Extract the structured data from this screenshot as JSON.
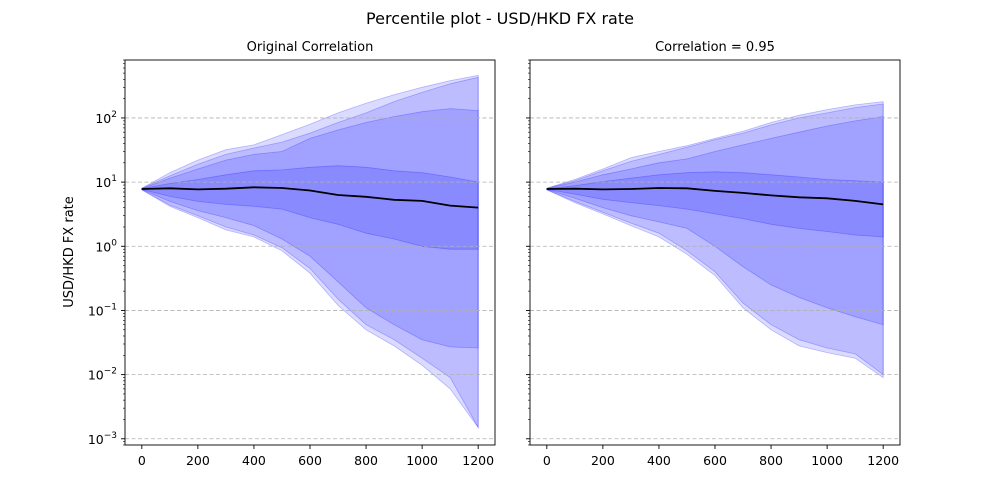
{
  "figure": {
    "title": "Percentile plot - USD/HKD FX rate"
  },
  "colors": {
    "band": "#0000ff",
    "median": "#000000",
    "grid": "#b0b0b0"
  },
  "chart_data": {
    "type": "area",
    "ylabel": "USD/HKD FX rate",
    "yscale": "log",
    "ylim": [
      0.0008,
      800
    ],
    "xlim": [
      -60,
      1260
    ],
    "x_ticks": [
      0,
      200,
      400,
      600,
      800,
      1000,
      1200
    ],
    "y_ticks": [
      {
        "base": "10",
        "exp": "−3",
        "value": 0.001
      },
      {
        "base": "10",
        "exp": "−2",
        "value": 0.01
      },
      {
        "base": "10",
        "exp": "−1",
        "value": 0.1
      },
      {
        "base": "10",
        "exp": "0",
        "value": 1
      },
      {
        "base": "10",
        "exp": "1",
        "value": 10
      },
      {
        "base": "10",
        "exp": "2",
        "value": 100
      }
    ],
    "grid": "y-dashed",
    "x": [
      0,
      100,
      200,
      300,
      400,
      500,
      600,
      700,
      800,
      900,
      1000,
      1100,
      1200
    ],
    "panels": [
      {
        "title": "Original Correlation",
        "median": [
          7.8,
          8.0,
          7.7,
          7.9,
          8.3,
          8.1,
          7.4,
          6.3,
          5.9,
          5.3,
          5.1,
          4.3,
          4.0
        ],
        "bands": [
          {
            "lower": [
              7.6,
              4.2,
              2.8,
              1.8,
              1.4,
              0.85,
              0.38,
              0.12,
              0.05,
              0.028,
              0.014,
              0.006,
              0.0015
            ],
            "upper": [
              8.0,
              14,
              22,
              32,
              38,
              55,
              80,
              120,
              170,
              230,
              300,
              380,
              460
            ]
          },
          {
            "lower": [
              7.6,
              4.4,
              3.0,
              2.0,
              1.5,
              0.95,
              0.45,
              0.15,
              0.06,
              0.035,
              0.018,
              0.009,
              0.0015
            ],
            "upper": [
              8.0,
              12.5,
              19,
              27,
              34,
              42,
              58,
              85,
              120,
              180,
              250,
              340,
              430
            ]
          },
          {
            "lower": [
              7.7,
              5.0,
              3.6,
              2.8,
              2.1,
              1.3,
              0.7,
              0.28,
              0.11,
              0.06,
              0.035,
              0.027,
              0.026
            ],
            "upper": [
              7.9,
              11.5,
              16,
              22,
              27,
              30,
              48,
              65,
              85,
              105,
              125,
              140,
              130
            ]
          },
          {
            "lower": [
              7.7,
              6.0,
              5.0,
              4.5,
              4.2,
              3.8,
              2.8,
              2.2,
              1.6,
              1.3,
              1.0,
              0.9,
              0.9
            ],
            "upper": [
              7.9,
              9.5,
              11,
              13,
              15,
              15.5,
              17,
              18,
              17,
              15,
              14,
              12,
              10
            ]
          }
        ]
      },
      {
        "title": "Correlation = 0.95",
        "median": [
          7.8,
          7.9,
          7.7,
          7.8,
          8.1,
          8.0,
          7.3,
          6.8,
          6.2,
          5.8,
          5.6,
          5.1,
          4.5
        ],
        "bands": [
          {
            "lower": [
              7.6,
              4.8,
              3.2,
              2.1,
              1.4,
              0.75,
              0.35,
              0.11,
              0.05,
              0.028,
              0.022,
              0.018,
              0.009
            ],
            "upper": [
              8.0,
              11,
              16,
              24,
              30,
              37,
              48,
              62,
              85,
              110,
              135,
              160,
              180
            ]
          },
          {
            "lower": [
              7.6,
              5.0,
              3.4,
              2.3,
              1.6,
              0.85,
              0.4,
              0.13,
              0.06,
              0.035,
              0.026,
              0.021,
              0.01
            ],
            "upper": [
              8.0,
              10.5,
              15,
              21,
              27,
              35,
              46,
              58,
              78,
              100,
              120,
              145,
              165
            ]
          },
          {
            "lower": [
              7.7,
              5.6,
              4.0,
              3.0,
              2.4,
              1.9,
              1.0,
              0.48,
              0.25,
              0.16,
              0.11,
              0.08,
              0.06
            ],
            "upper": [
              7.9,
              10,
              13,
              16,
              20,
              23,
              30,
              38,
              48,
              60,
              75,
              90,
              105
            ]
          },
          {
            "lower": [
              7.7,
              6.5,
              5.4,
              4.8,
              4.3,
              3.8,
              3.2,
              2.7,
              2.2,
              1.9,
              1.7,
              1.5,
              1.4
            ],
            "upper": [
              7.9,
              8.8,
              10.2,
              11.5,
              13,
              14,
              14.5,
              14,
              13,
              12,
              11,
              10.5,
              10
            ]
          }
        ]
      }
    ]
  }
}
